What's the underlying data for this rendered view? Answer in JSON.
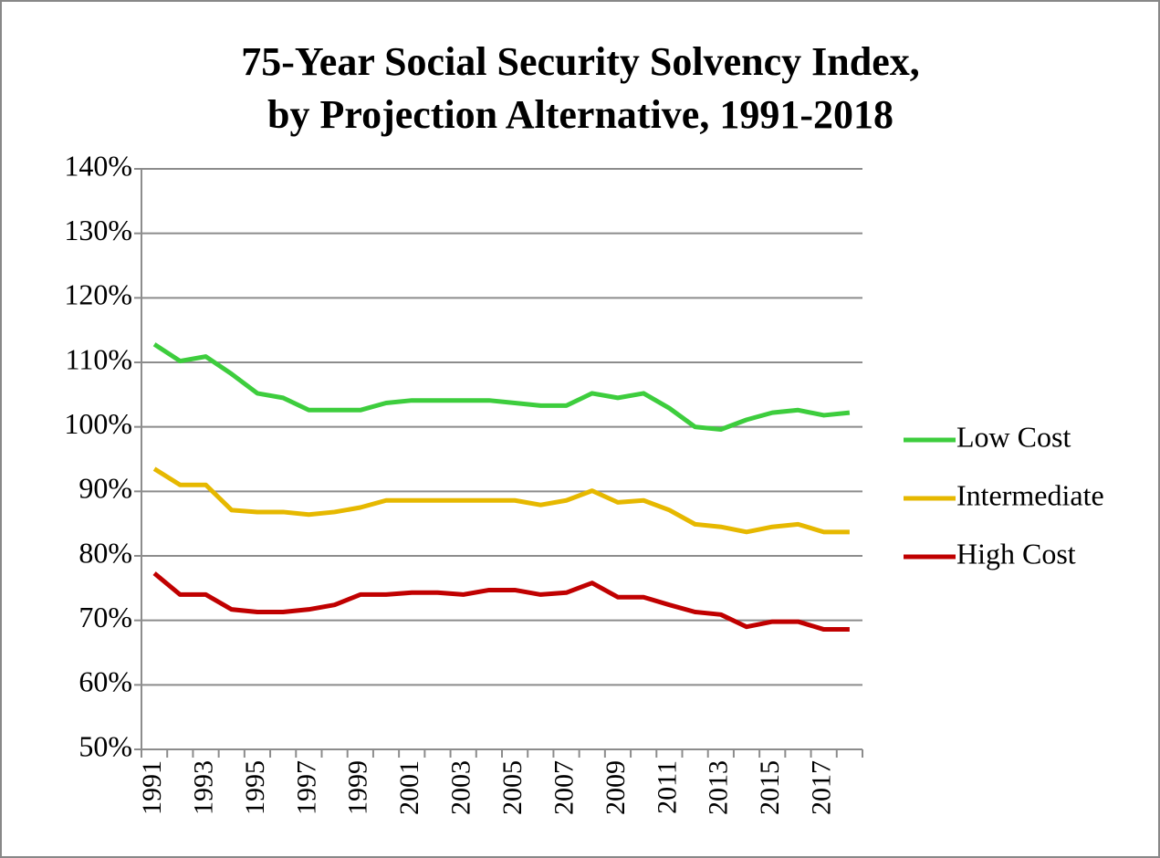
{
  "chart_data": {
    "type": "line",
    "title": [
      "75-Year Social Security Solvency Index,",
      "by Projection Alternative, 1991-2018"
    ],
    "categories": [
      "1991",
      null,
      "1993",
      null,
      "1995",
      null,
      "1997",
      null,
      "1999",
      null,
      "2001",
      null,
      "2003",
      null,
      "2005",
      null,
      "2007",
      null,
      "2009",
      null,
      "2011",
      null,
      "2013",
      null,
      "2015",
      null,
      "2017",
      null
    ],
    "series": [
      {
        "name": "Low Cost",
        "color": "#3dcd3d",
        "values": [
          112.8,
          110.2,
          110.9,
          108.2,
          105.2,
          104.5,
          102.6,
          102.6,
          102.6,
          103.7,
          104.1,
          104.1,
          104.1,
          104.1,
          103.7,
          103.3,
          103.3,
          105.2,
          104.5,
          105.2,
          102.9,
          100,
          99.6,
          101.1,
          102.2,
          102.6,
          101.8,
          102.2
        ]
      },
      {
        "name": "Intermediate",
        "color": "#e6b800",
        "values": [
          93.5,
          91,
          91,
          87.1,
          86.8,
          86.8,
          86.4,
          86.8,
          87.5,
          88.6,
          88.6,
          88.6,
          88.6,
          88.6,
          88.6,
          87.9,
          88.6,
          90.1,
          88.3,
          88.6,
          87.1,
          84.9,
          84.5,
          83.7,
          84.5,
          84.9,
          83.7,
          83.7
        ]
      },
      {
        "name": "High Cost",
        "color": "#c00000",
        "values": [
          77.3,
          74,
          74,
          71.7,
          71.3,
          71.3,
          71.7,
          72.4,
          74,
          74,
          74.3,
          74.3,
          74,
          74.7,
          74.7,
          74,
          74.3,
          75.8,
          73.6,
          73.6,
          72.4,
          71.3,
          70.9,
          69,
          69.8,
          69.8,
          68.6,
          68.6
        ]
      }
    ],
    "ylim": [
      50,
      140
    ],
    "yticks": [
      {
        "value": 50,
        "label": "50%"
      },
      {
        "value": 60,
        "label": "60%"
      },
      {
        "value": 70,
        "label": "70%"
      },
      {
        "value": 80,
        "label": "80%"
      },
      {
        "value": 90,
        "label": "90%"
      },
      {
        "value": 100,
        "label": "100%"
      },
      {
        "value": 110,
        "label": "110%"
      },
      {
        "value": 120,
        "label": "120%"
      },
      {
        "value": 130,
        "label": "130%"
      },
      {
        "value": 140,
        "label": "140%"
      }
    ],
    "grid": true,
    "legend": "right"
  }
}
